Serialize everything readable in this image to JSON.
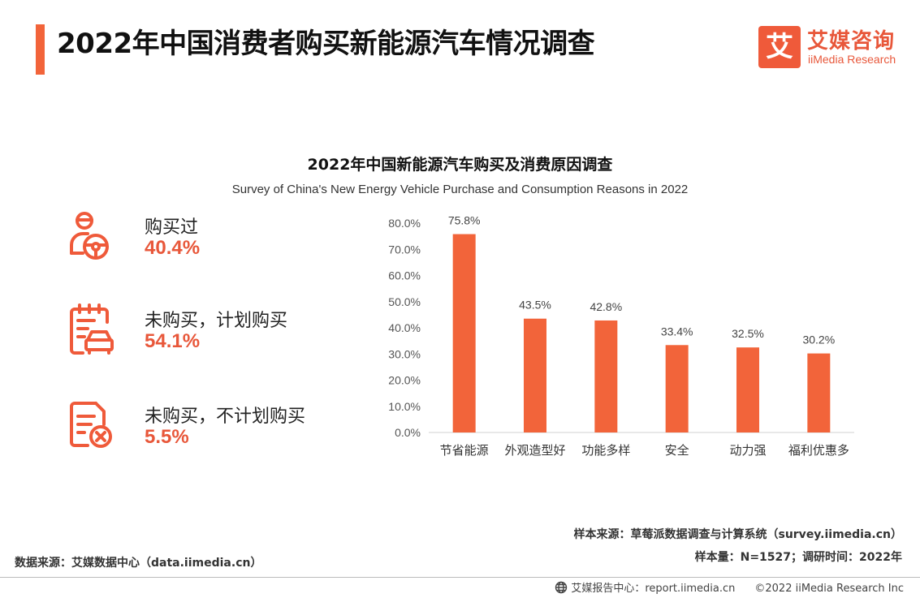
{
  "header": {
    "title": "2022年中国消费者购买新能源汽车情况调查",
    "logo_mark": "艾",
    "logo_cn": "艾媒咨询",
    "logo_en": "iiMedia Research"
  },
  "colors": {
    "accent": "#f2643a",
    "value": "#e8573a",
    "bar": "#f2643a"
  },
  "stats": [
    {
      "label": "购买过",
      "value": "40.4%",
      "icon": "person-steering-wheel-icon"
    },
    {
      "label": "未购买，计划购买",
      "value": "54.1%",
      "icon": "clipboard-car-icon"
    },
    {
      "label": "未购买，不计划购买",
      "value": "5.5%",
      "icon": "document-cross-icon"
    }
  ],
  "chart_data": {
    "type": "bar",
    "title": "2022年中国新能源汽车购买及消费原因调查",
    "subtitle": "Survey of China's New Energy Vehicle Purchase and Consumption Reasons in 2022",
    "categories": [
      "节省能源",
      "外观造型好",
      "功能多样",
      "安全",
      "动力强",
      "福利优惠多"
    ],
    "values": [
      75.8,
      43.5,
      42.8,
      33.4,
      32.5,
      30.2
    ],
    "data_labels": [
      "75.8%",
      "43.5%",
      "42.8%",
      "33.4%",
      "32.5%",
      "30.2%"
    ],
    "yticks": [
      "0.0%",
      "10.0%",
      "20.0%",
      "30.0%",
      "40.0%",
      "50.0%",
      "60.0%",
      "70.0%",
      "80.0%"
    ],
    "ylim": [
      0,
      80
    ],
    "xlabel": "",
    "ylabel": "",
    "grid": false
  },
  "source": {
    "sample_source": "样本来源：草莓派数据调查与计算系统（survey.iimedia.cn）",
    "sample_size": "样本量：N=1527；调研时间：2022年",
    "data_source": "数据来源：艾媒数据中心（data.iimedia.cn）"
  },
  "footer": {
    "report_center": "艾媒报告中心：report.iimedia.cn",
    "copyright": "©2022  iiMedia Research  Inc"
  }
}
